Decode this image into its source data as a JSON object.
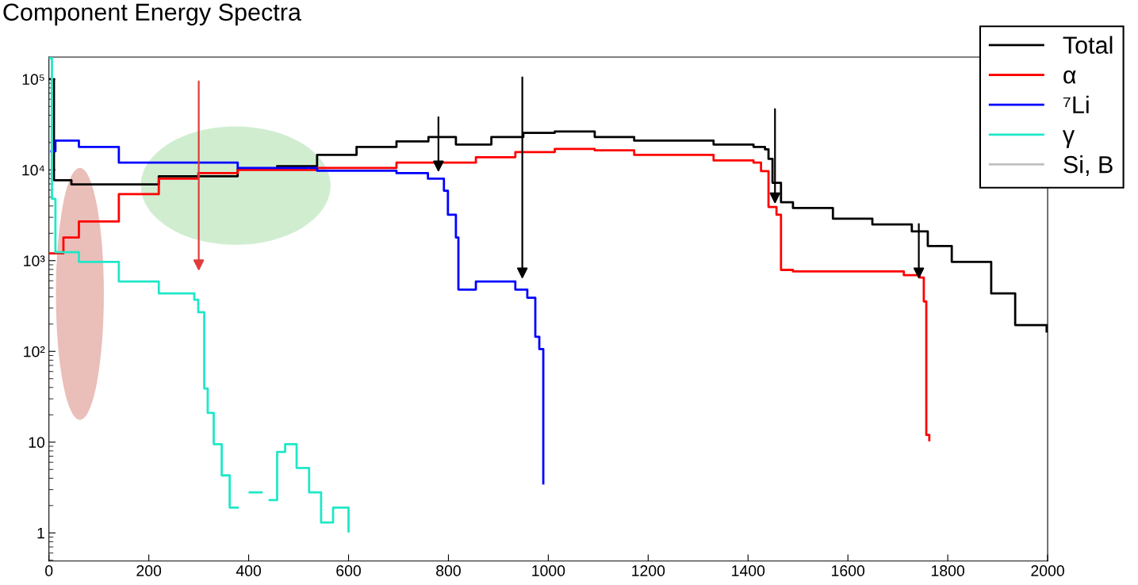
{
  "chart_data": {
    "type": "step",
    "title": "Component Energy Spectra",
    "xlim": [
      0,
      2000
    ],
    "xticks": [
      0,
      200,
      400,
      600,
      800,
      1000,
      1200,
      1400,
      1600,
      1800,
      2000
    ],
    "ylim": [
      0.49,
      175000
    ],
    "yticks": [
      {
        "value": 1,
        "label": "1"
      },
      {
        "value": 10,
        "label": "10"
      },
      {
        "value": 100,
        "label": "10²"
      },
      {
        "value": 1000,
        "label": "10³"
      },
      {
        "value": 10000,
        "label": "10⁴"
      },
      {
        "value": 100000,
        "label": "10⁵"
      }
    ],
    "log": "y",
    "grid": false,
    "legend": "top right",
    "series": [
      {
        "name": "Total",
        "color": "#000000",
        "x": [
          0,
          10,
          45,
          125,
          220,
          378,
          457,
          537,
          616,
          696,
          760,
          791,
          815,
          886,
          950,
          1013,
          1093,
          1172,
          1331,
          1411,
          1434,
          1441,
          1449,
          1466,
          1490,
          1570,
          1649,
          1728,
          1760,
          1808,
          1887,
          1935,
          1998
        ],
        "values": [
          100000,
          7700,
          6900,
          6900,
          8500,
          10300,
          11000,
          14600,
          17900,
          20600,
          23000,
          23000,
          19000,
          23000,
          25600,
          26500,
          23000,
          21000,
          19000,
          17900,
          16800,
          13200,
          7200,
          4400,
          3800,
          2900,
          2500,
          2100,
          1450,
          970,
          435,
          195,
          166
        ]
      },
      {
        "name": "α",
        "color": "#ff0000",
        "x": [
          0,
          29,
          60,
          140,
          220,
          299,
          378,
          537,
          696,
          775,
          855,
          934,
          1013,
          1093,
          1172,
          1331,
          1411,
          1426,
          1441,
          1457,
          1466,
          1490,
          1649,
          1712,
          1744,
          1752,
          1757,
          1763
        ],
        "values": [
          1200,
          1800,
          2700,
          5400,
          8000,
          9200,
          10000,
          10500,
          12000,
          12000,
          13800,
          15700,
          17000,
          16400,
          14600,
          12700,
          12000,
          9700,
          3900,
          3200,
          790,
          760,
          760,
          690,
          650,
          355,
          12,
          10.5
        ]
      },
      {
        "name": "⁷Li",
        "color": "#0000ff",
        "x": [
          5,
          13,
          60,
          140,
          299,
          378,
          537,
          696,
          759,
          791,
          799,
          815,
          820,
          855,
          934,
          958,
          974,
          982,
          990
        ],
        "values": [
          16000,
          21000,
          17900,
          12000,
          12000,
          10500,
          9800,
          9200,
          8000,
          5900,
          3200,
          1800,
          480,
          590,
          480,
          390,
          145,
          106,
          3.5
        ]
      },
      {
        "name": "γ",
        "color": "#1ee8c8",
        "x": [
          0,
          6,
          13,
          60,
          140,
          220,
          291,
          299,
          311,
          318,
          330,
          346,
          362,
          378,
          402,
          426,
          442,
          457,
          473,
          496,
          521,
          545,
          569,
          600
        ],
        "values": [
          170000,
          4800,
          1240,
          970,
          590,
          435,
          370,
          270,
          39,
          21,
          9.5,
          4.3,
          1.9,
          null,
          2.8,
          null,
          2.3,
          7.8,
          9.5,
          5.2,
          2.8,
          1.3,
          1.9,
          1.04
        ]
      },
      {
        "name": "Si, B",
        "color": "#c0c0c0"
      }
    ]
  }
}
